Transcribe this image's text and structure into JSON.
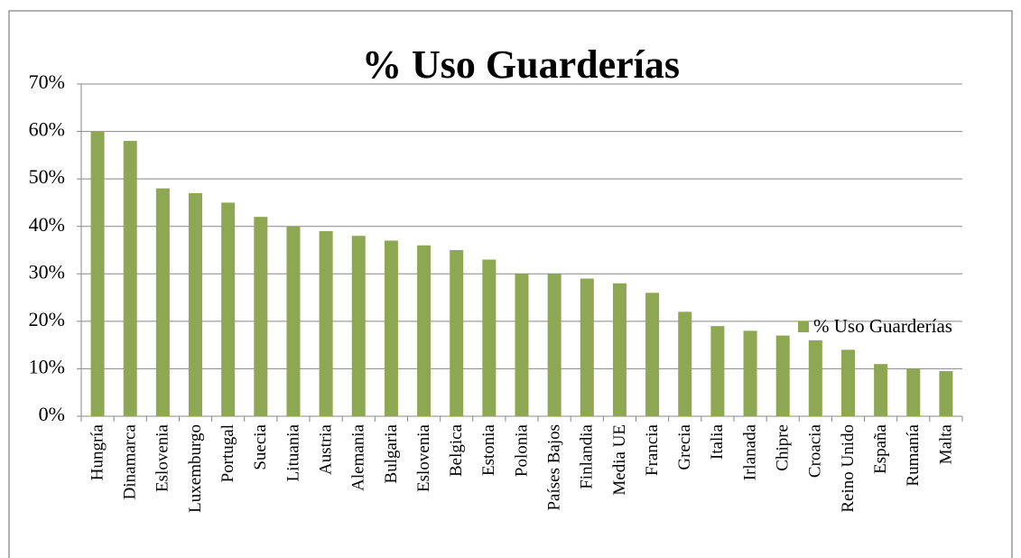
{
  "chart_data": {
    "type": "bar",
    "title": "% Uso Guarderías",
    "categories": [
      "Hungría",
      "Dinamarca",
      "Eslovenia",
      "Luxemburgo",
      "Portugal",
      "Suecia",
      "Lituania",
      "Austria",
      "Alemania",
      "Bulgaria",
      "Eslovenia",
      "Belgica",
      "Estonia",
      "Polonia",
      "Países Bajos",
      "Finlandia",
      "Media UE",
      "Francia",
      "Grecia",
      "Italia",
      "Irlanada",
      "Chipre",
      "Croacia",
      "Reino Unido",
      "España",
      "Rumanía",
      "Malta"
    ],
    "series": [
      {
        "name": "% Uso Guarderías",
        "color": "#8da752",
        "values": [
          60,
          58,
          48,
          47,
          45,
          42,
          40,
          39,
          38,
          37,
          36,
          35,
          33,
          30,
          30,
          29,
          28,
          26,
          22,
          19,
          18,
          17,
          16,
          14,
          11,
          10,
          9.5
        ]
      }
    ],
    "ylim": [
      0,
      70
    ],
    "yticks": [
      {
        "value": 0,
        "label": "0%"
      },
      {
        "value": 10,
        "label": "10%"
      },
      {
        "value": 20,
        "label": "20%"
      },
      {
        "value": 30,
        "label": "30%"
      },
      {
        "value": 40,
        "label": "40%"
      },
      {
        "value": 50,
        "label": "50%"
      },
      {
        "value": 60,
        "label": "60%"
      },
      {
        "value": 70,
        "label": "70%"
      }
    ],
    "grid": true,
    "legend": "right"
  }
}
